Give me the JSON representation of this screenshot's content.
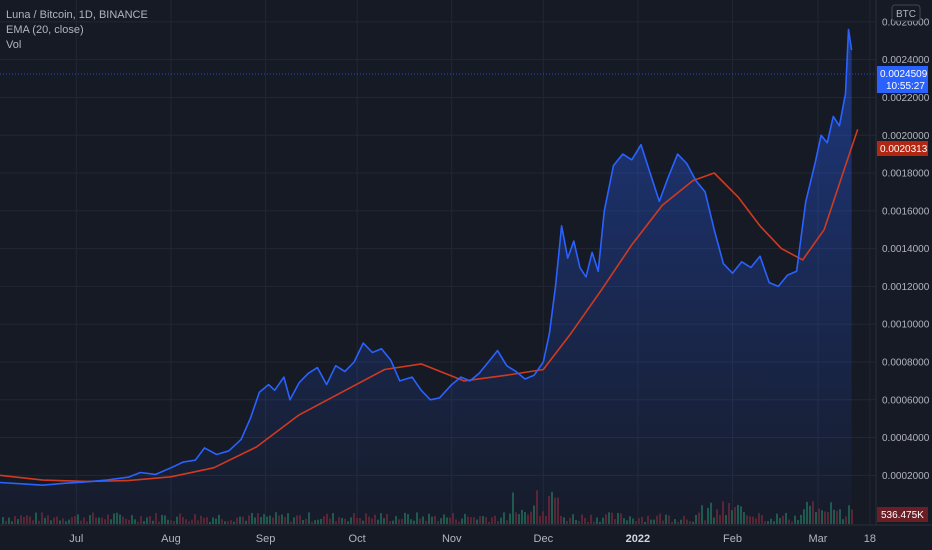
{
  "legend": {
    "symbol_line": "Luna / Bitcoin, 1D, BINANCE",
    "ema_line": "EMA (20, close)",
    "vol_line": "Vol"
  },
  "currency": "BTC",
  "badges": {
    "price": "0.0024509",
    "countdown": "10:55:27",
    "ema": "0.0020313",
    "volume": "536.475K"
  },
  "colors": {
    "background": "#161a25",
    "price_line": "#2962ff",
    "ema_line": "#d03a1f",
    "grid": "#232734",
    "volume_up": "#1f5a4a",
    "volume_down": "#5a2430"
  },
  "chart_data": {
    "type": "area",
    "ylim": [
      8e-05,
      0.0027
    ],
    "y_ticks": [
      "0.0002000",
      "0.0004000",
      "0.0006000",
      "0.0008000",
      "0.0010000",
      "0.0012000",
      "0.0014000",
      "0.0016000",
      "0.0018000",
      "0.0020000",
      "0.0022000",
      "0.0024000",
      "0.0026000"
    ],
    "x_ticks": [
      {
        "label": "Jul",
        "date": "2021-07-01",
        "bold": false
      },
      {
        "label": "Aug",
        "date": "2021-08-01",
        "bold": false
      },
      {
        "label": "Sep",
        "date": "2021-09-01",
        "bold": false
      },
      {
        "label": "Oct",
        "date": "2021-10-01",
        "bold": false
      },
      {
        "label": "Nov",
        "date": "2021-11-01",
        "bold": false
      },
      {
        "label": "Dec",
        "date": "2021-12-01",
        "bold": false
      },
      {
        "label": "2022",
        "date": "2022-01-01",
        "bold": true
      },
      {
        "label": "Feb",
        "date": "2022-02-01",
        "bold": false
      },
      {
        "label": "Mar",
        "date": "2022-03-01",
        "bold": false
      },
      {
        "label": "18",
        "date": "2022-03-18",
        "bold": false
      }
    ],
    "series": [
      {
        "name": "Luna / Bitcoin",
        "points": [
          [
            "2021-06-06",
            0.000162
          ],
          [
            "2021-06-13",
            0.000155
          ],
          [
            "2021-06-20",
            0.000148
          ],
          [
            "2021-06-27",
            0.000158
          ],
          [
            "2021-07-04",
            0.000165
          ],
          [
            "2021-07-11",
            0.000175
          ],
          [
            "2021-07-18",
            0.00019
          ],
          [
            "2021-07-22",
            0.000215
          ],
          [
            "2021-07-27",
            0.000205
          ],
          [
            "2021-08-01",
            0.00024
          ],
          [
            "2021-08-05",
            0.00027
          ],
          [
            "2021-08-09",
            0.00028
          ],
          [
            "2021-08-12",
            0.000345
          ],
          [
            "2021-08-16",
            0.00031
          ],
          [
            "2021-08-20",
            0.00033
          ],
          [
            "2021-08-24",
            0.00039
          ],
          [
            "2021-08-27",
            0.0005
          ],
          [
            "2021-08-30",
            0.00064
          ],
          [
            "2021-09-02",
            0.00068
          ],
          [
            "2021-09-04",
            0.00065
          ],
          [
            "2021-09-07",
            0.00072
          ],
          [
            "2021-09-09",
            0.0006
          ],
          [
            "2021-09-12",
            0.00069
          ],
          [
            "2021-09-15",
            0.00074
          ],
          [
            "2021-09-18",
            0.00077
          ],
          [
            "2021-09-21",
            0.00068
          ],
          [
            "2021-09-24",
            0.00078
          ],
          [
            "2021-09-27",
            0.00075
          ],
          [
            "2021-09-30",
            0.0008
          ],
          [
            "2021-10-03",
            0.0009
          ],
          [
            "2021-10-06",
            0.00085
          ],
          [
            "2021-10-09",
            0.00087
          ],
          [
            "2021-10-12",
            0.00081
          ],
          [
            "2021-10-15",
            0.0007
          ],
          [
            "2021-10-19",
            0.00072
          ],
          [
            "2021-10-22",
            0.00065
          ],
          [
            "2021-10-25",
            0.0006
          ],
          [
            "2021-10-28",
            0.00061
          ],
          [
            "2021-11-01",
            0.00068
          ],
          [
            "2021-11-04",
            0.00072
          ],
          [
            "2021-11-07",
            0.0007
          ],
          [
            "2021-11-10",
            0.00074
          ],
          [
            "2021-11-13",
            0.0008
          ],
          [
            "2021-11-16",
            0.00086
          ],
          [
            "2021-11-19",
            0.00078
          ],
          [
            "2021-11-22",
            0.00075
          ],
          [
            "2021-11-25",
            0.00071
          ],
          [
            "2021-11-28",
            0.00073
          ],
          [
            "2021-12-01",
            0.0008
          ],
          [
            "2021-12-03",
            0.00095
          ],
          [
            "2021-12-05",
            0.0012
          ],
          [
            "2021-12-07",
            0.00152
          ],
          [
            "2021-12-09",
            0.00135
          ],
          [
            "2021-12-11",
            0.00144
          ],
          [
            "2021-12-13",
            0.0013
          ],
          [
            "2021-12-15",
            0.00125
          ],
          [
            "2021-12-17",
            0.00138
          ],
          [
            "2021-12-19",
            0.00128
          ],
          [
            "2021-12-21",
            0.0016
          ],
          [
            "2021-12-24",
            0.00184
          ],
          [
            "2021-12-27",
            0.0019
          ],
          [
            "2021-12-30",
            0.00187
          ],
          [
            "2022-01-02",
            0.00195
          ],
          [
            "2022-01-05",
            0.0018
          ],
          [
            "2022-01-08",
            0.00165
          ],
          [
            "2022-01-11",
            0.00178
          ],
          [
            "2022-01-14",
            0.0019
          ],
          [
            "2022-01-17",
            0.00185
          ],
          [
            "2022-01-20",
            0.00176
          ],
          [
            "2022-01-23",
            0.0017
          ],
          [
            "2022-01-26",
            0.0015
          ],
          [
            "2022-01-29",
            0.00132
          ],
          [
            "2022-02-01",
            0.00127
          ],
          [
            "2022-02-04",
            0.00133
          ],
          [
            "2022-02-07",
            0.0013
          ],
          [
            "2022-02-10",
            0.00136
          ],
          [
            "2022-02-13",
            0.00122
          ],
          [
            "2022-02-16",
            0.0012
          ],
          [
            "2022-02-19",
            0.00126
          ],
          [
            "2022-02-22",
            0.00128
          ],
          [
            "2022-02-25",
            0.00165
          ],
          [
            "2022-02-28",
            0.00185
          ],
          [
            "2022-03-02",
            0.002
          ],
          [
            "2022-03-04",
            0.00196
          ],
          [
            "2022-03-06",
            0.0021
          ],
          [
            "2022-03-08",
            0.00205
          ],
          [
            "2022-03-10",
            0.00222
          ],
          [
            "2022-03-11",
            0.00256
          ],
          [
            "2022-03-12",
            0.002451
          ]
        ]
      },
      {
        "name": "EMA (20, close)",
        "points": [
          [
            "2021-06-06",
            0.0002
          ],
          [
            "2021-06-20",
            0.000175
          ],
          [
            "2021-07-04",
            0.000168
          ],
          [
            "2021-07-18",
            0.000172
          ],
          [
            "2021-08-01",
            0.000192
          ],
          [
            "2021-08-15",
            0.00024
          ],
          [
            "2021-08-29",
            0.00035
          ],
          [
            "2021-09-12",
            0.00052
          ],
          [
            "2021-09-26",
            0.00064
          ],
          [
            "2021-10-10",
            0.00076
          ],
          [
            "2021-10-22",
            0.00079
          ],
          [
            "2021-11-05",
            0.0007
          ],
          [
            "2021-11-19",
            0.00073
          ],
          [
            "2021-12-01",
            0.00076
          ],
          [
            "2021-12-10",
            0.00095
          ],
          [
            "2021-12-20",
            0.00118
          ],
          [
            "2021-12-30",
            0.00142
          ],
          [
            "2022-01-09",
            0.00163
          ],
          [
            "2022-01-19",
            0.00176
          ],
          [
            "2022-01-26",
            0.0018
          ],
          [
            "2022-02-03",
            0.00167
          ],
          [
            "2022-02-10",
            0.00152
          ],
          [
            "2022-02-17",
            0.0014
          ],
          [
            "2022-02-24",
            0.00134
          ],
          [
            "2022-03-03",
            0.0015
          ],
          [
            "2022-03-10",
            0.00184
          ],
          [
            "2022-03-14",
            0.002031
          ]
        ]
      }
    ]
  }
}
